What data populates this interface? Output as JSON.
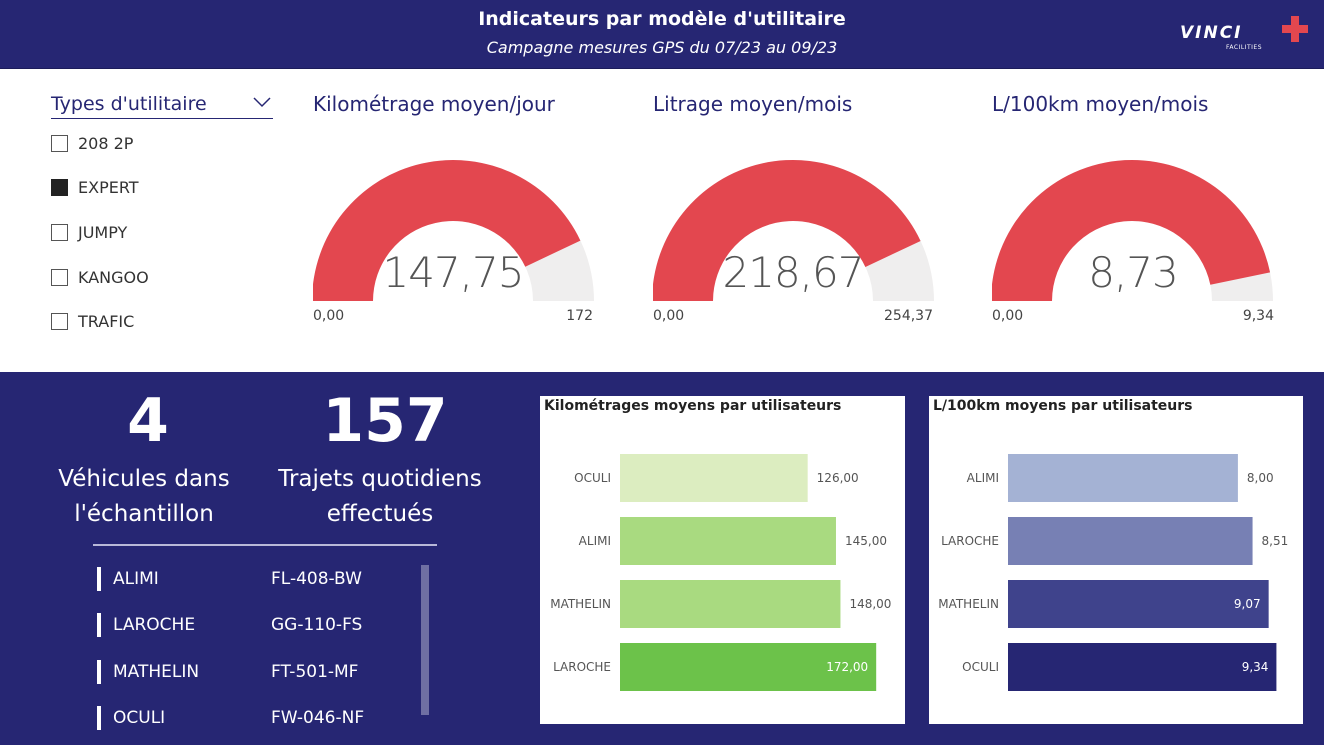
{
  "header": {
    "title": "Indicateurs par modèle d'utilitaire",
    "subtitle": "Campagne mesures GPS du 07/23 au 09/23",
    "logo_text": "VINCI",
    "logo_subtext": "FACILITIES"
  },
  "colors": {
    "navy": "#262673",
    "gauge_fill": "#e3474f",
    "gauge_track": "#efeeee"
  },
  "slicer": {
    "title": "Types d'utilitaire",
    "items": [
      {
        "label": "208 2P",
        "checked": false
      },
      {
        "label": "EXPERT",
        "checked": true
      },
      {
        "label": "JUMPY",
        "checked": false
      },
      {
        "label": "KANGOO",
        "checked": false
      },
      {
        "label": "TRAFIC",
        "checked": false
      }
    ]
  },
  "gauges": [
    {
      "title": "Kilométrage moyen/jour",
      "value": "147,75",
      "min": "0,00",
      "max": "172",
      "fraction": 0.859
    },
    {
      "title": "Litrage moyen/mois",
      "value": "218,67",
      "min": "0,00",
      "max": "254,37",
      "fraction": 0.86
    },
    {
      "title": "L/100km moyen/mois",
      "value": "8,73",
      "min": "0,00",
      "max": "9,34",
      "fraction": 0.935
    }
  ],
  "kpis": {
    "vehicles": {
      "value": "4",
      "label_line1": "Véhicules dans",
      "label_line2": "l'échantillon"
    },
    "trips": {
      "value": "157",
      "label_line1": "Trajets quotidiens",
      "label_line2": "effectués"
    }
  },
  "vehicles": [
    {
      "name": "ALIMI",
      "plate": "FL-408-BW"
    },
    {
      "name": "LAROCHE",
      "plate": "GG-110-FS"
    },
    {
      "name": "MATHELIN",
      "plate": "FT-501-MF"
    },
    {
      "name": "OCULI",
      "plate": "FW-046-NF"
    }
  ],
  "chart_data": [
    {
      "type": "bar",
      "orientation": "horizontal",
      "title": "Kilométrages moyens par utilisateurs",
      "categories": [
        "OCULI",
        "ALIMI",
        "MATHELIN",
        "LAROCHE"
      ],
      "values": [
        126.0,
        145.0,
        148.0,
        172.0
      ],
      "labels": [
        "126,00",
        "145,00",
        "148,00",
        "172,00"
      ],
      "colors": [
        "#dcedc0",
        "#a9da80",
        "#a9da80",
        "#6cc24a"
      ],
      "label_inside": [
        false,
        false,
        false,
        true
      ],
      "xlim": [
        0,
        190
      ]
    },
    {
      "type": "bar",
      "orientation": "horizontal",
      "title": "L/100km moyens par utilisateurs",
      "categories": [
        "ALIMI",
        "LAROCHE",
        "MATHELIN",
        "OCULI"
      ],
      "values": [
        8.0,
        8.51,
        9.07,
        9.34
      ],
      "labels": [
        "8,00",
        "8,51",
        "9,07",
        "9,34"
      ],
      "colors": [
        "#a4b2d4",
        "#7780b4",
        "#3f438c",
        "#262673"
      ],
      "label_inside": [
        false,
        false,
        true,
        true
      ],
      "xlim": [
        0,
        10.3
      ]
    }
  ]
}
